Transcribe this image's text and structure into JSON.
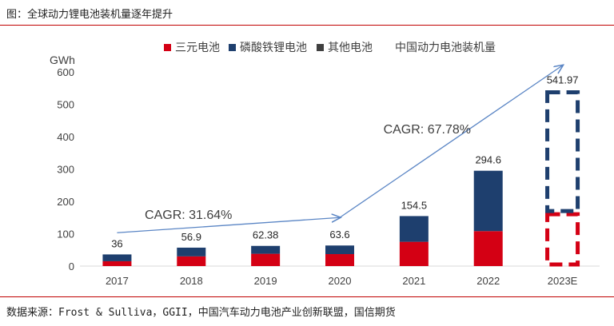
{
  "figure_title": "图：全球动力锂电池装机量逐年提升",
  "source": "数据来源：Frost & Sulliva，GGII，中国汽车动力电池产业创新联盟，国信期货",
  "chart_data": {
    "type": "bar",
    "stacked": true,
    "ylabel": "GWh",
    "ylim": [
      0,
      600
    ],
    "yticks": [
      0,
      100,
      200,
      300,
      400,
      500,
      600
    ],
    "categories": [
      "2017",
      "2018",
      "2019",
      "2020",
      "2021",
      "2022",
      "2023E"
    ],
    "series": [
      {
        "name": "三元电池",
        "color": "#d40014",
        "values": [
          15,
          30,
          38,
          37,
          75,
          108,
          165
        ]
      },
      {
        "name": "磷酸铁锂电池",
        "color": "#1e3f6e",
        "values": [
          21,
          26.9,
          24.38,
          26.6,
          79.5,
          186.6,
          377
        ]
      },
      {
        "name": "其他电池",
        "color": "#404040",
        "values": [
          0,
          0,
          0,
          0,
          0,
          0,
          0
        ]
      }
    ],
    "totals": [
      "36",
      "56.9",
      "62.38",
      "63.6",
      "154.5",
      "294.6",
      "541.97"
    ],
    "total_series_name": "中国动力电池装机量",
    "forecast_category": "2023E",
    "annotations": [
      {
        "text": "CAGR: 31.64%",
        "from": [
          "2017",
          103
        ],
        "to": [
          "2020",
          150
        ]
      },
      {
        "text": "CAGR: 67.78%",
        "from": [
          "2020",
          150
        ],
        "to": [
          "2023E",
          620
        ]
      }
    ],
    "grid": false,
    "legend_position": "top"
  }
}
